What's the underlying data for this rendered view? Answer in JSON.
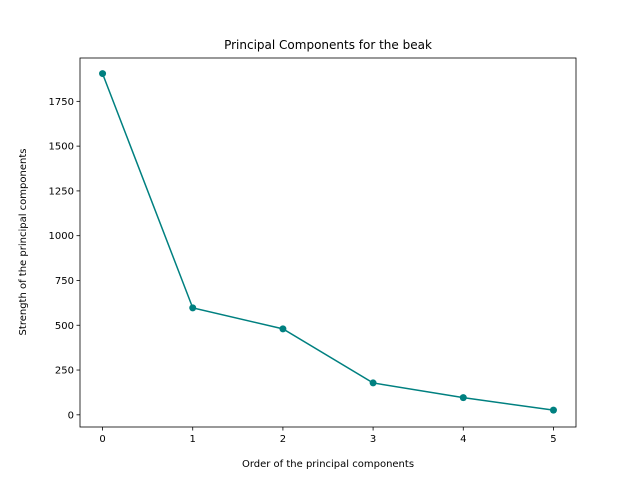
{
  "chart_data": {
    "type": "line",
    "title": "Principal Components for the beak",
    "xlabel": "Order of the principal components",
    "ylabel": "Strength of the principal components",
    "x": [
      0,
      1,
      2,
      3,
      4,
      5
    ],
    "series": [
      {
        "values": [
          1905,
          597,
          480,
          178,
          96,
          26
        ]
      }
    ],
    "xlim": [
      -0.25,
      5.25
    ],
    "ylim": [
      -68,
      1992
    ],
    "xticks": [
      0,
      1,
      2,
      3,
      4,
      5
    ],
    "yticks": [
      0,
      250,
      500,
      750,
      1000,
      1250,
      1500,
      1750
    ],
    "grid": false,
    "color": "#008080",
    "marker": "circle"
  }
}
